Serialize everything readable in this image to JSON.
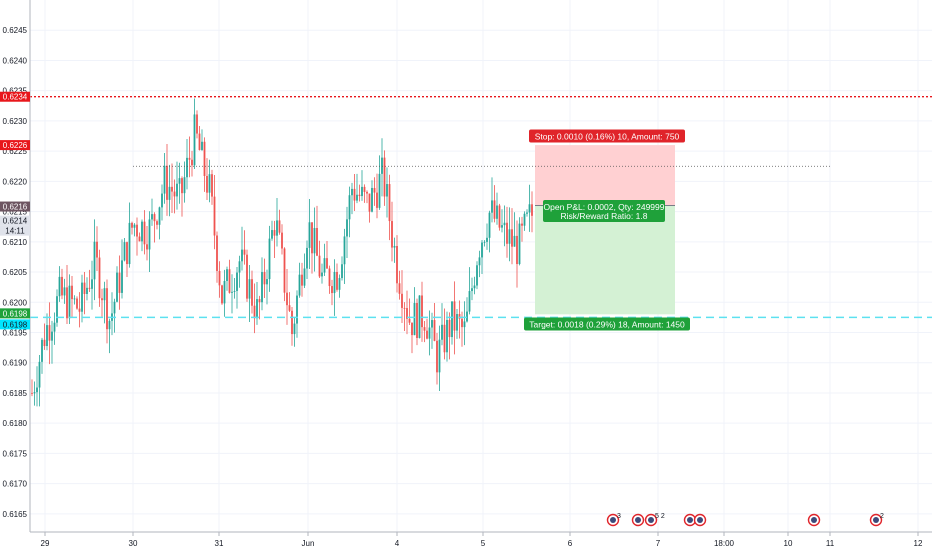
{
  "chart_data": {
    "type": "candlestick",
    "symbol_hint": "",
    "y_axis": {
      "min": 0.6162,
      "max": 0.625,
      "ticks": [
        "0.6165",
        "0.6170",
        "0.6175",
        "0.6180",
        "0.6185",
        "0.6190",
        "0.6195",
        "0.6200",
        "0.6205",
        "0.6210",
        "0.6215",
        "0.6220",
        "0.6225",
        "0.6230",
        "0.6235",
        "0.6240",
        "0.6245"
      ],
      "position": "left"
    },
    "x_axis": {
      "labels": [
        "29",
        "30",
        "31",
        "Jun",
        "4",
        "5",
        "6",
        "7",
        "18:00",
        "10",
        "11",
        "12"
      ]
    },
    "price_tags": {
      "stop_line": {
        "label": "0.6234",
        "price": 0.6234,
        "color": "#e8161b"
      },
      "stop_entry": {
        "label": "0.6226",
        "price": 0.6226,
        "color": "#e8161b"
      },
      "current": {
        "label": "0.6216",
        "price": 0.6216,
        "color": "#6d5561"
      },
      "last": {
        "label": "0.6214",
        "price": 0.6214,
        "color": "#e0e3eb"
      },
      "countdown": {
        "label": "14:11",
        "color": "#e0e3eb"
      },
      "target": {
        "label": "0.6198",
        "price": 0.6198,
        "color": "#1fa13a"
      },
      "cyan_line": {
        "label": "0.6198",
        "price": 0.61975,
        "color": "#00e5ff"
      }
    },
    "position_tool": {
      "entry": 0.6216,
      "stop": 0.6226,
      "target": 0.6198,
      "stop_label": "Stop: 0.0010 (0.16%) 10, Amount: 750",
      "pnl_label": "Open P&L: 0.0002, Qty: 249999",
      "rr_label": "Risk/Reward Ratio: 1.8",
      "target_label": "Target: 0.0018 (0.29%) 18, Amount: 1450",
      "colors": {
        "stop_zone": "#ffcdd0",
        "target_zone": "#d2f0d2",
        "stop_badge": "#e0242a",
        "target_badge": "#1fa13a"
      }
    },
    "reference_lines": {
      "red_dotted": 0.6234,
      "gray_dotted": 0.62225,
      "cyan_dashed": 0.61975
    },
    "event_markers": [
      {
        "count": "3"
      },
      {
        "count": ""
      },
      {
        "count": "5"
      },
      {
        "count": "2"
      },
      {
        "count": ""
      },
      {
        "count": ""
      },
      {
        "count": ""
      },
      {
        "count": "2"
      }
    ],
    "colors": {
      "up": "#26a69a",
      "down": "#ef5350",
      "wick_up": "#26a69a",
      "wick_down": "#ef5350",
      "grid": "#f0f3fa"
    }
  }
}
